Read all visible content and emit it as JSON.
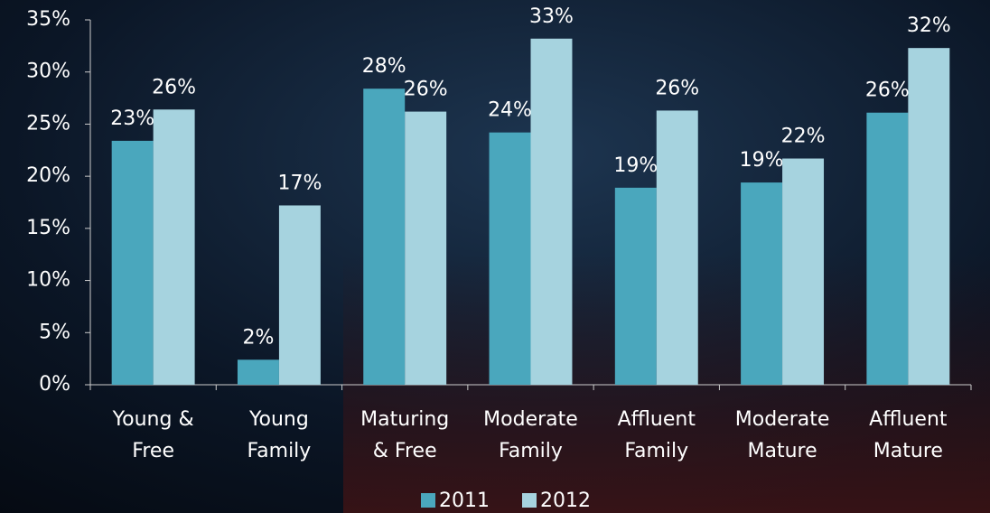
{
  "chart_data": {
    "type": "bar",
    "categories": [
      [
        "Young &",
        "Free"
      ],
      [
        "Young",
        "Family"
      ],
      [
        "Maturing",
        "& Free"
      ],
      [
        "Moderate",
        "Family"
      ],
      [
        "Affluent",
        "Family"
      ],
      [
        "Moderate",
        "Mature"
      ],
      [
        "Affluent",
        "Mature"
      ]
    ],
    "series": [
      {
        "name": "2011",
        "color": "#4aa7bd",
        "values": [
          23.4,
          2.4,
          28.4,
          24.2,
          18.9,
          19.4,
          26.1
        ],
        "value_labels": [
          "23%",
          "2%",
          "28%",
          "24%",
          "19%",
          "19%",
          "26%"
        ]
      },
      {
        "name": "2012",
        "color": "#a6d3df",
        "values": [
          26.4,
          17.2,
          26.2,
          33.2,
          26.3,
          21.7,
          32.3
        ],
        "value_labels": [
          "26%",
          "17%",
          "26%",
          "33%",
          "26%",
          "22%",
          "32%"
        ]
      }
    ],
    "ylim": [
      0,
      35
    ],
    "yticks": [
      {
        "value": 0,
        "label": "0%"
      },
      {
        "value": 5,
        "label": "5%"
      },
      {
        "value": 10,
        "label": "10%"
      },
      {
        "value": 15,
        "label": "15%"
      },
      {
        "value": 20,
        "label": "20%"
      },
      {
        "value": 25,
        "label": "25%"
      },
      {
        "value": 30,
        "label": "30%"
      },
      {
        "value": 35,
        "label": "35%"
      }
    ],
    "legend": "bottom"
  }
}
